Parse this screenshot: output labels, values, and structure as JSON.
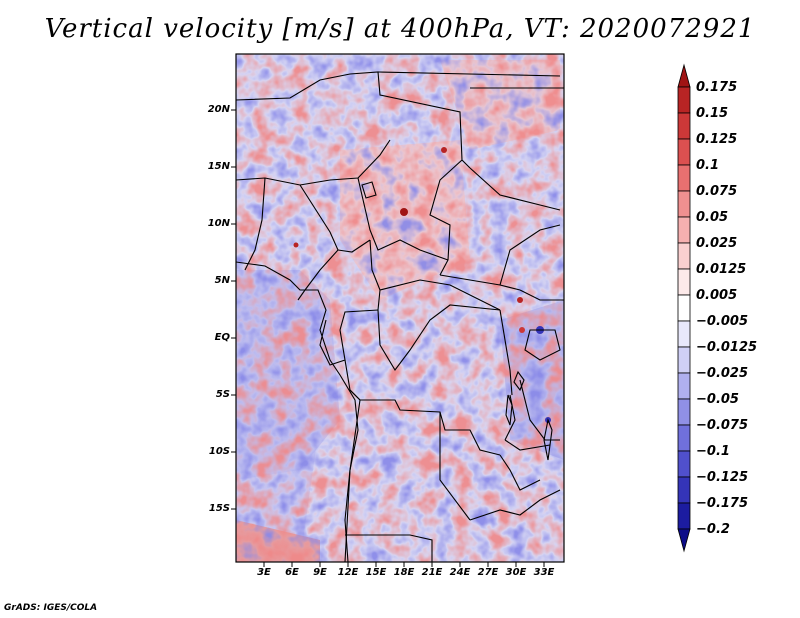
{
  "title": "Vertical velocity [m/s] at 400hPa, VT: 2020072921",
  "footer": "GrADS: IGES/COLA",
  "map": {
    "lat_labels": [
      "20N",
      "15N",
      "10N",
      "5N",
      "EQ",
      "5S",
      "10S",
      "15S"
    ],
    "lon_labels": [
      "3E",
      "6E",
      "9E",
      "12E",
      "15E",
      "18E",
      "21E",
      "24E",
      "27E",
      "30E",
      "33E"
    ]
  },
  "colorbar": {
    "labels": [
      "0.175",
      "0.15",
      "0.125",
      "0.1",
      "0.075",
      "0.05",
      "0.025",
      "0.0125",
      "0.005",
      "−0.005",
      "−0.0125",
      "−0.025",
      "−0.05",
      "−0.075",
      "−0.1",
      "−0.125",
      "−0.175",
      "−0.2"
    ],
    "colors": [
      "#a01414",
      "#b82424",
      "#cc3838",
      "#dc5050",
      "#e87070",
      "#f09090",
      "#f6b0b0",
      "#fad0d0",
      "#fdeaea",
      "#ffffff",
      "#e8e8fb",
      "#d0d0f6",
      "#b0b0ef",
      "#9090e6",
      "#7070dc",
      "#5050cc",
      "#3434b8",
      "#1c1ca0",
      "#0c0c88"
    ]
  }
}
